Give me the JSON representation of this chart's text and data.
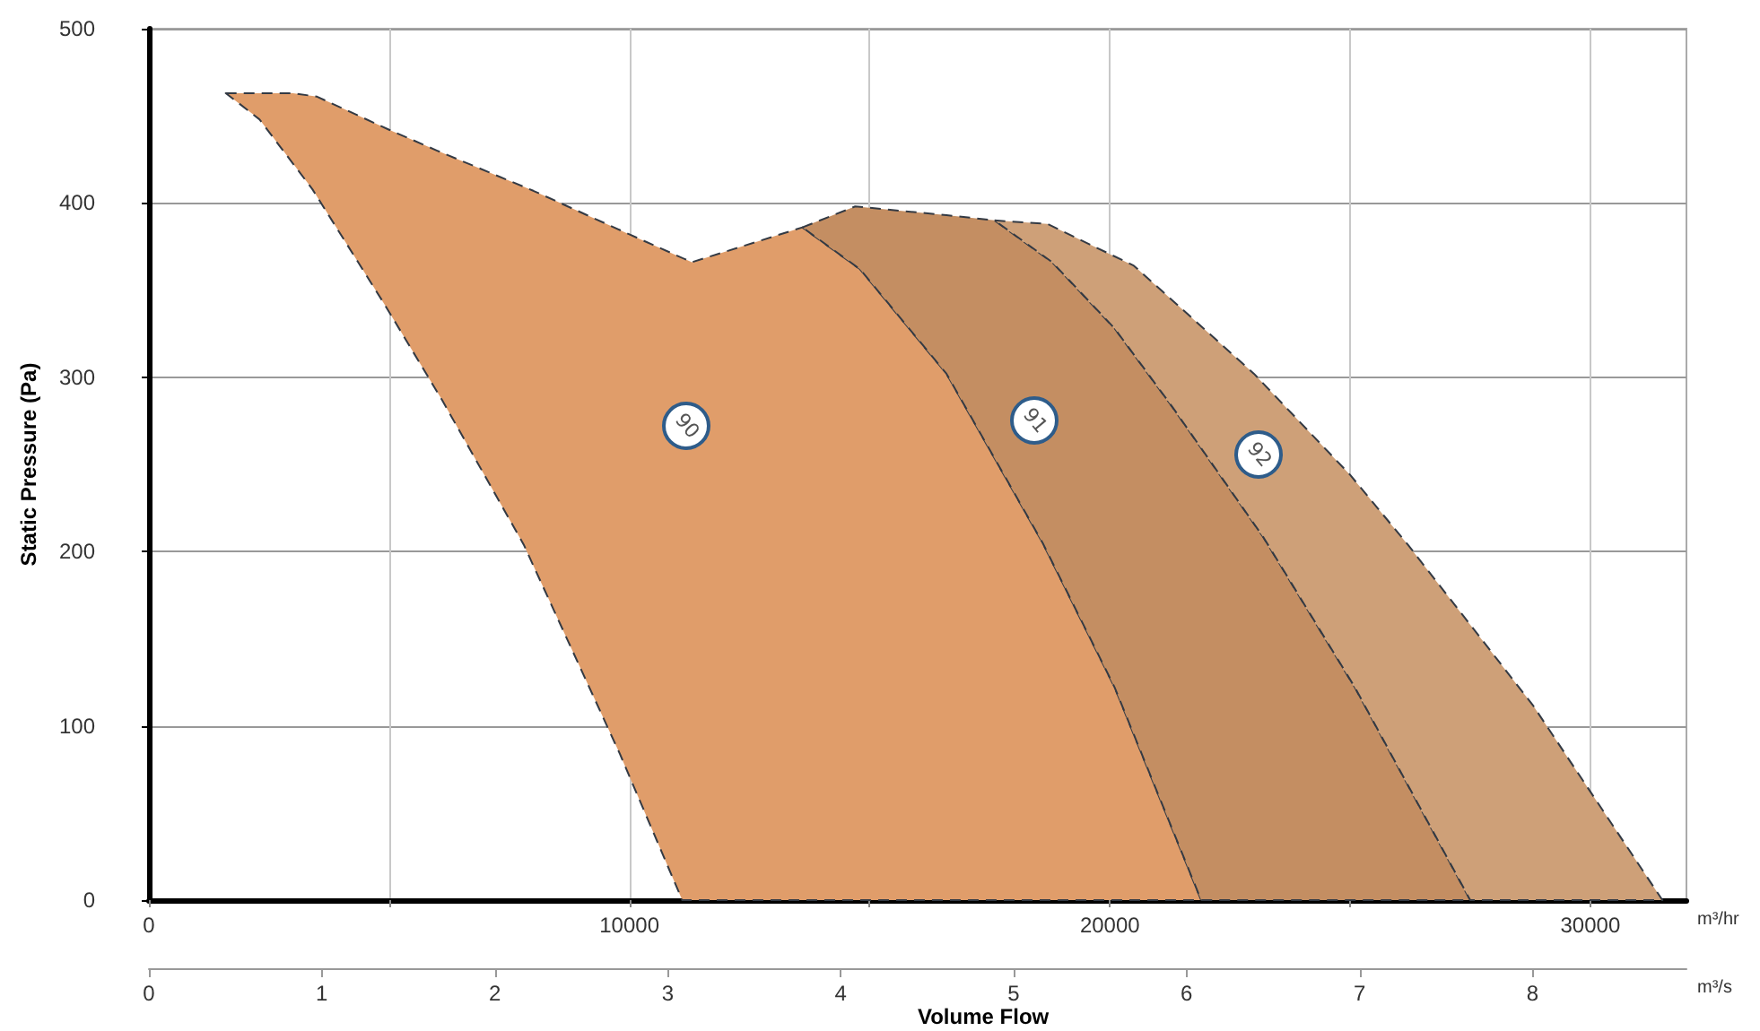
{
  "chart_data": {
    "type": "area",
    "ylabel": "Static Pressure (Pa)",
    "xlabel": "Volume Flow",
    "annotations": [
      "m³/hr",
      "m³/s"
    ],
    "xlim": [
      0,
      32000
    ],
    "xticks": [
      0,
      {
        "value": 5000,
        "label": null
      },
      10000,
      {
        "value": 15000,
        "label": null
      },
      20000,
      {
        "value": 25000,
        "label": null
      },
      30000
    ],
    "x2lim": [
      0,
      8.89
    ],
    "x2ticks": [
      0,
      1,
      2,
      3,
      4,
      5,
      6,
      7,
      8
    ],
    "ylim": [
      0,
      500
    ],
    "yticks": [
      0,
      100,
      200,
      300,
      400,
      500
    ],
    "grid": true,
    "line_style": "dashed",
    "series": [
      {
        "name": "90",
        "color": "#e09d6a",
        "x": [
          1600,
          2300,
          3000,
          3500,
          5000,
          6000,
          8000,
          10000,
          11300,
          13600,
          14800,
          16600,
          18600,
          20100,
          21900,
          11100,
          9800,
          7800,
          6100,
          4900,
          3400,
          2300
        ],
        "values": [
          463,
          463,
          463,
          461,
          442,
          430,
          407,
          382,
          366,
          386,
          362,
          302,
          205,
          122,
          0,
          0,
          84,
          204,
          287,
          342,
          408,
          448
        ]
      },
      {
        "name": "91",
        "color": "#c48e62",
        "x": [
          13600,
          14700,
          16600,
          17600,
          18800,
          20100,
          21300,
          23200,
          25100,
          27500,
          21900,
          20100,
          18600,
          16600,
          14800
        ],
        "values": [
          386,
          398,
          393,
          390,
          366,
          328,
          283,
          208,
          122,
          0,
          0,
          122,
          205,
          302,
          362
        ]
      },
      {
        "name": "92",
        "color": "#cea078",
        "x": [
          17600,
          18700,
          20500,
          23000,
          25000,
          26200,
          28800,
          31500,
          27500,
          25100,
          23200,
          21300,
          20100,
          18800
        ],
        "values": [
          390,
          388,
          364,
          302,
          244,
          204,
          112,
          0,
          0,
          122,
          208,
          283,
          328,
          366
        ]
      }
    ]
  }
}
